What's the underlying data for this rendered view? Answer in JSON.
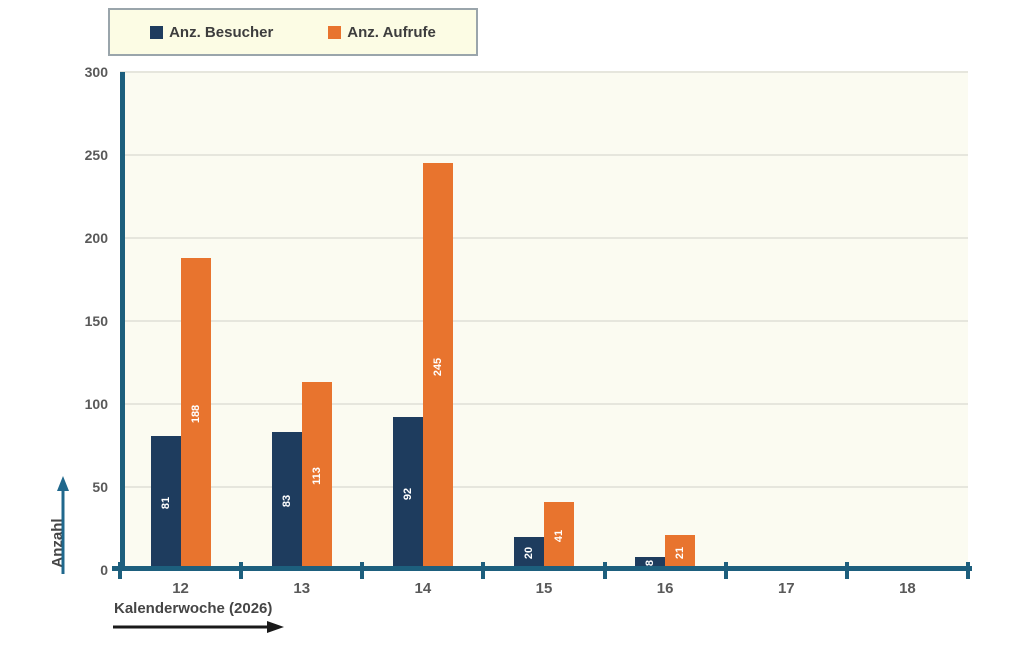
{
  "chart_data": {
    "type": "bar",
    "categories": [
      "12",
      "13",
      "14",
      "15",
      "16",
      "17",
      "18"
    ],
    "series": [
      {
        "name": "Anz. Besucher",
        "color": "#1e3c5e",
        "values": [
          81,
          83,
          92,
          20,
          8,
          0,
          0
        ]
      },
      {
        "name": "Anz. Aufrufe",
        "color": "#e8742e",
        "values": [
          188,
          113,
          245,
          41,
          21,
          0,
          0
        ]
      }
    ],
    "title": "",
    "xlabel": "Kalenderwoche (2026)",
    "ylabel": "Anzahl",
    "ylim": [
      0,
      300
    ],
    "yticks": [
      0,
      50,
      100,
      150,
      200,
      250,
      300
    ],
    "grid": true,
    "legend_position": "top",
    "bar_value_labels": "white, rotated 90deg, centered in bar"
  },
  "colors": {
    "axis": "#1d5f7d",
    "y_arrow": "#20688d",
    "x_arrow": "#1a1a1a",
    "plot_background": "#fbfbf1",
    "legend_background": "#fcfce4",
    "legend_border": "#9aa5ab",
    "gridline": "#e6e6dd",
    "tick_label": "#595959",
    "axis_title": "#454545",
    "bar_value_text": "#ffffff"
  }
}
